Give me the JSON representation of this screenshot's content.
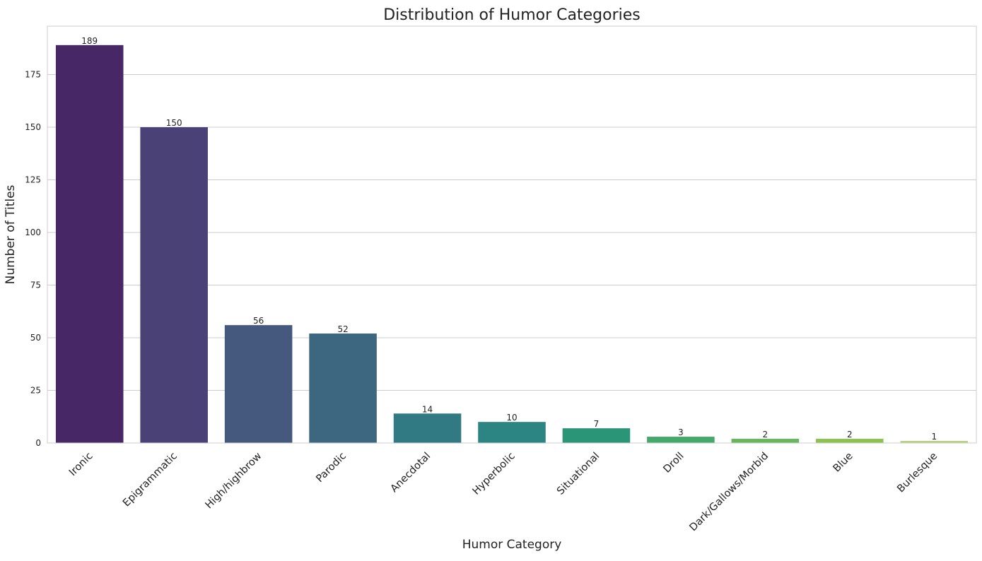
{
  "chart_data": {
    "type": "bar",
    "title": "Distribution of Humor Categories",
    "xlabel": "Humor Category",
    "ylabel": "Number of Titles",
    "categories": [
      "Ironic",
      "Epigrammatic",
      "High/highbrow",
      "Parodic",
      "Anecdotal",
      "Hyperbolic",
      "Situational",
      "Droll",
      "Dark/Gallows/Morbid",
      "Blue",
      "Burlesque"
    ],
    "values": [
      189,
      150,
      56,
      52,
      14,
      10,
      7,
      3,
      2,
      2,
      1
    ],
    "bar_labels": [
      "189",
      "150",
      "56",
      "52",
      "14",
      "10",
      "7",
      "3",
      "2",
      "2",
      "1"
    ],
    "colors": [
      "#482766",
      "#4a4277",
      "#45597e",
      "#3d6781",
      "#317a84",
      "#2c8582",
      "#2b9677",
      "#47a86c",
      "#64b85a",
      "#8cc34e",
      "#b9d17e"
    ],
    "ylim": [
      0,
      198
    ],
    "yticks": [
      0,
      25,
      50,
      75,
      100,
      125,
      150,
      175
    ],
    "ytick_labels": [
      "0",
      "25",
      "50",
      "75",
      "100",
      "125",
      "150",
      "175"
    ],
    "grid": "horizontal",
    "legend": "none"
  }
}
